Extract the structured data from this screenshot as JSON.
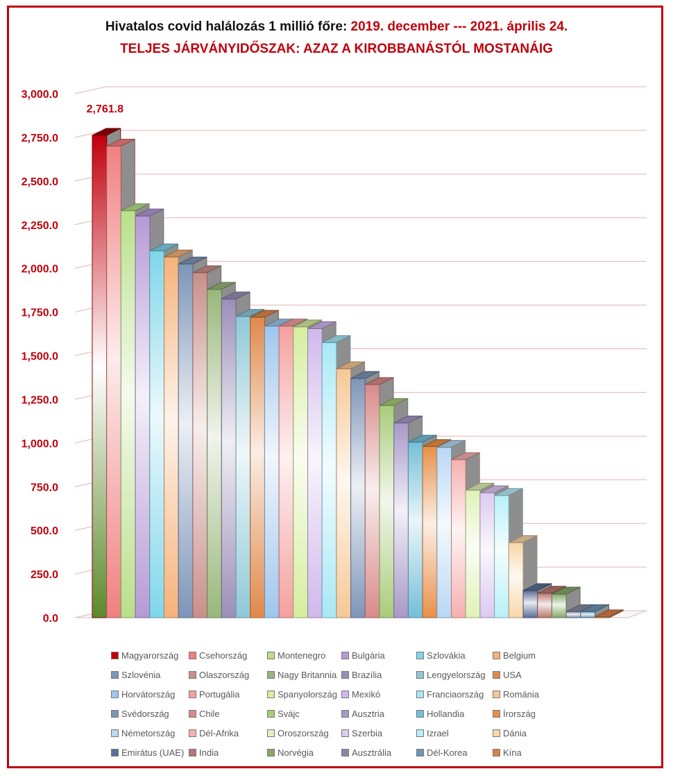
{
  "title": {
    "part1": "Hivatalos covid halálozás 1 millió főre: ",
    "part2": "2019. december  --- 2021. április 24."
  },
  "subtitle": "TELJES  JÁRVÁNYIDŐSZAK: AZAZ A KIROBBANÁSTÓL MOSTANÁIG",
  "chart_data": {
    "type": "bar",
    "ylim": [
      0,
      3000
    ],
    "yticks": [
      "0.0",
      "250.0",
      "500.0",
      "750.0",
      "1,000.0",
      "1,250.0",
      "1,500.0",
      "1,750.0",
      "2,000.0",
      "2,250.0",
      "2,500.0",
      "2,750.0",
      "3,000.0"
    ],
    "grid": true,
    "legend_position": "bottom",
    "data_label": {
      "index": 0,
      "text": "2,761.8"
    },
    "categories": [
      "Magyarország",
      "Csehország",
      "Montenegro",
      "Bulgária",
      "Szlovákia",
      "Belgium",
      "Szlovénia",
      "Olaszország",
      "Nagy Britannia",
      "Brazília",
      "Lengyelország",
      "USA",
      "Horvátország",
      "Portugália",
      "Spanyolország",
      "Mexikó",
      "Franciaország",
      "Románia",
      "Svédország",
      "Chile",
      "Svájc",
      "Ausztria",
      "Hollandia",
      "Írország",
      "Németország",
      "Dél-Afrika",
      "Oroszország",
      "Szerbia",
      "Izrael",
      "Dánia",
      "Emirátus (UAE)",
      "India",
      "Norvégia",
      "Ausztrália",
      "Dél-Korea",
      "Kína"
    ],
    "values": [
      2761.8,
      2700,
      2330,
      2300,
      2100,
      2065,
      2025,
      1975,
      1880,
      1825,
      1725,
      1720,
      1670,
      1670,
      1665,
      1655,
      1575,
      1425,
      1370,
      1335,
      1215,
      1115,
      1005,
      980,
      975,
      905,
      730,
      715,
      700,
      430,
      155,
      140,
      135,
      35,
      35,
      5
    ],
    "colors": [
      "#c0000c",
      "#f08080",
      "#b8e08a",
      "#b59ad6",
      "#7fd6ea",
      "#f5b27a",
      "#7d95b8",
      "#c98f8a",
      "#98b77a",
      "#9b8fb8",
      "#8fc8d8",
      "#e0894a",
      "#9ec6ee",
      "#f4a0a0",
      "#d6ee9e",
      "#d0b8ec",
      "#a8e8f6",
      "#f6c896",
      "#7d95b8",
      "#d88a8a",
      "#a8cc7a",
      "#a898c8",
      "#74bfd8",
      "#e8904a",
      "#b8d8f4",
      "#f6b0b0",
      "#e0f2b8",
      "#dccaf0",
      "#b8f0fa",
      "#f8d6a8",
      "#5a6e96",
      "#b87870",
      "#88a86a",
      "#8888a8",
      "#6a96b8",
      "#d8804a"
    ]
  }
}
